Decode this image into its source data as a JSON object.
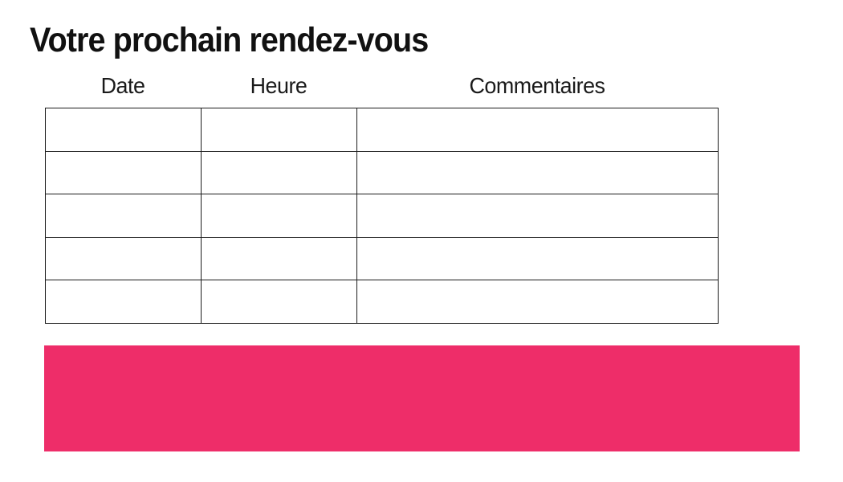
{
  "page": {
    "title": "Votre prochain rendez-vous"
  },
  "table": {
    "columns": [
      {
        "label": "Date"
      },
      {
        "label": "Heure"
      },
      {
        "label": "Commentaires"
      }
    ],
    "rows": [
      [
        "",
        "",
        ""
      ],
      [
        "",
        "",
        ""
      ],
      [
        "",
        "",
        ""
      ],
      [
        "",
        "",
        ""
      ],
      [
        "",
        "",
        ""
      ]
    ]
  },
  "banner": {
    "text": "",
    "color": "#ee2d69"
  },
  "colors": {
    "accent_pink": "#ee2d69",
    "text": "#1a1a1a",
    "table_border": "#1c1c1c",
    "background": "#ffffff"
  }
}
